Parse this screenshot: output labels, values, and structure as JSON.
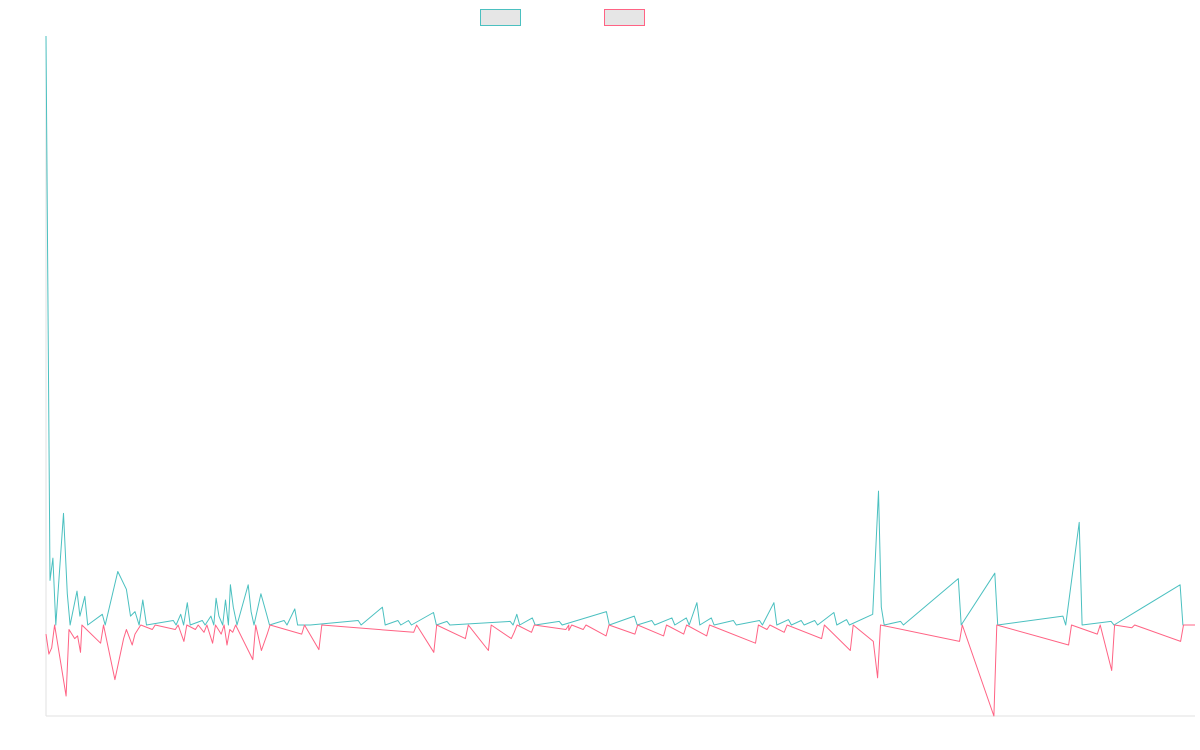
{
  "chart_data": {
    "type": "line",
    "title": "",
    "xlabel": "",
    "ylabel": "",
    "grid": false,
    "legend": "top-center",
    "xlim": [
      0,
      400
    ],
    "ylim": [
      -100,
      660
    ],
    "colors": {
      "series_a": "#4bc0c0",
      "series_b": "#ff6384",
      "legend_fill": "#e6e6e6",
      "axis": "#e2e2e2"
    },
    "series": [
      {
        "points": [
          [
            0,
            660
          ],
          [
            1.4,
            50
          ],
          [
            2.4,
            75
          ],
          [
            3.4,
            0
          ],
          [
            6.1,
            125
          ],
          [
            7.4,
            35
          ],
          [
            8.4,
            0
          ],
          [
            10.8,
            38
          ],
          [
            11.8,
            10
          ],
          [
            13.5,
            32
          ],
          [
            14.5,
            0
          ],
          [
            19.6,
            12
          ],
          [
            20.6,
            0
          ],
          [
            25,
            60
          ],
          [
            28,
            40
          ],
          [
            29.4,
            10
          ],
          [
            31,
            15
          ],
          [
            32.4,
            0
          ],
          [
            33.7,
            28
          ],
          [
            35,
            0
          ],
          [
            44.3,
            5
          ],
          [
            45.3,
            0
          ],
          [
            46.9,
            12
          ],
          [
            47.9,
            0
          ],
          [
            49.2,
            25
          ],
          [
            50.2,
            0
          ],
          [
            54.4,
            5
          ],
          [
            55.4,
            0
          ],
          [
            57.4,
            10
          ],
          [
            58.4,
            0
          ],
          [
            59.2,
            30
          ],
          [
            60.2,
            10
          ],
          [
            61.5,
            0
          ],
          [
            62.5,
            28
          ],
          [
            63.5,
            0
          ],
          [
            64.2,
            45
          ],
          [
            65.2,
            20
          ],
          [
            66.5,
            0
          ],
          [
            70.4,
            45
          ],
          [
            71.4,
            15
          ],
          [
            72.4,
            0
          ],
          [
            74.8,
            35
          ],
          [
            76.8,
            12
          ],
          [
            77.8,
            0
          ],
          [
            82.9,
            5
          ],
          [
            83.9,
            0
          ],
          [
            86.6,
            18
          ],
          [
            87.6,
            0
          ],
          [
            92,
            0
          ],
          [
            108.7,
            5
          ],
          [
            109.7,
            0
          ],
          [
            117.1,
            20
          ],
          [
            118.1,
            0
          ],
          [
            122.5,
            5
          ],
          [
            123.5,
            0
          ],
          [
            126.2,
            5
          ],
          [
            127.2,
            0
          ],
          [
            134.9,
            14
          ],
          [
            135.9,
            0
          ],
          [
            139.6,
            4
          ],
          [
            140.6,
            0
          ],
          [
            161.6,
            4
          ],
          [
            162.6,
            0
          ],
          [
            163.9,
            12
          ],
          [
            164.9,
            0
          ],
          [
            169.3,
            8
          ],
          [
            170.3,
            0
          ],
          [
            178.7,
            4
          ],
          [
            179.7,
            0
          ],
          [
            195.1,
            15
          ],
          [
            196.1,
            0
          ],
          [
            204.8,
            10
          ],
          [
            205.8,
            0
          ],
          [
            210.9,
            5
          ],
          [
            211.9,
            0
          ],
          [
            217.9,
            8
          ],
          [
            218.9,
            0
          ],
          [
            222.9,
            8
          ],
          [
            223.9,
            0
          ],
          [
            226.6,
            25
          ],
          [
            227.6,
            0
          ],
          [
            231.6,
            8
          ],
          [
            232.6,
            0
          ],
          [
            239.3,
            5
          ],
          [
            240.3,
            0
          ],
          [
            248.4,
            5
          ],
          [
            249.4,
            0
          ],
          [
            253.4,
            25
          ],
          [
            254.4,
            0
          ],
          [
            258.5,
            6
          ],
          [
            259.5,
            0
          ],
          [
            262.9,
            5
          ],
          [
            263.9,
            0
          ],
          [
            267.6,
            5
          ],
          [
            268.6,
            0
          ],
          [
            274.3,
            14
          ],
          [
            275.3,
            0
          ],
          [
            278.7,
            6
          ],
          [
            279.7,
            0
          ],
          [
            287.8,
            12
          ],
          [
            289.8,
            150
          ],
          [
            290.8,
            20
          ],
          [
            291.8,
            0
          ],
          [
            297.5,
            4
          ],
          [
            298.5,
            0
          ],
          [
            317.6,
            52
          ],
          [
            318.6,
            0
          ],
          [
            330.3,
            58
          ],
          [
            331.3,
            0
          ],
          [
            354,
            10
          ],
          [
            355,
            0
          ],
          [
            359.7,
            115
          ],
          [
            360.7,
            0
          ],
          [
            370.8,
            4
          ],
          [
            371.8,
            0
          ],
          [
            394.8,
            45
          ],
          [
            395.8,
            0
          ],
          [
            400,
            0
          ]
        ]
      },
      {
        "points": [
          [
            0,
            -10
          ],
          [
            1,
            -32
          ],
          [
            2,
            -25
          ],
          [
            3,
            0
          ],
          [
            7,
            -78
          ],
          [
            8,
            -5
          ],
          [
            9,
            -10
          ],
          [
            10,
            -15
          ],
          [
            11,
            -12
          ],
          [
            12,
            -30
          ],
          [
            12.5,
            0
          ],
          [
            19,
            -20
          ],
          [
            20,
            0
          ],
          [
            24,
            -60
          ],
          [
            27,
            -15
          ],
          [
            28,
            -5
          ],
          [
            30,
            -22
          ],
          [
            31,
            -10
          ],
          [
            32,
            -5
          ],
          [
            33,
            0
          ],
          [
            37,
            -5
          ],
          [
            38,
            0
          ],
          [
            45,
            -5
          ],
          [
            46,
            0
          ],
          [
            48,
            -18
          ],
          [
            49,
            0
          ],
          [
            52,
            -5
          ],
          [
            53,
            0
          ],
          [
            55,
            -8
          ],
          [
            56,
            0
          ],
          [
            58,
            -20
          ],
          [
            59,
            0
          ],
          [
            61,
            -10
          ],
          [
            62,
            0
          ],
          [
            63,
            -22
          ],
          [
            64,
            -5
          ],
          [
            65,
            -8
          ],
          [
            66,
            0
          ],
          [
            72,
            -38
          ],
          [
            73,
            0
          ],
          [
            75,
            -28
          ],
          [
            77,
            -10
          ],
          [
            78,
            0
          ],
          [
            89,
            -10
          ],
          [
            90,
            0
          ],
          [
            95,
            -27
          ],
          [
            96,
            0
          ],
          [
            128,
            -8
          ],
          [
            129,
            0
          ],
          [
            135,
            -30
          ],
          [
            136,
            0
          ],
          [
            146,
            -15
          ],
          [
            147,
            0
          ],
          [
            154,
            -28
          ],
          [
            155,
            0
          ],
          [
            162,
            -15
          ],
          [
            163,
            -8
          ],
          [
            164,
            0
          ],
          [
            169,
            -8
          ],
          [
            170,
            0
          ],
          [
            181,
            -5
          ],
          [
            182,
            0
          ],
          [
            182,
            -6
          ],
          [
            183,
            0
          ],
          [
            187,
            -5
          ],
          [
            188,
            0
          ],
          [
            195,
            -12
          ],
          [
            196,
            0
          ],
          [
            205,
            -10
          ],
          [
            206,
            0
          ],
          [
            215,
            -12
          ],
          [
            216,
            0
          ],
          [
            222,
            -10
          ],
          [
            223,
            0
          ],
          [
            230,
            -12
          ],
          [
            231,
            0
          ],
          [
            247,
            -20
          ],
          [
            248,
            0
          ],
          [
            251,
            -5
          ],
          [
            252,
            0
          ],
          [
            257,
            -8
          ],
          [
            258,
            0
          ],
          [
            270,
            -15
          ],
          [
            271,
            0
          ],
          [
            280,
            -28
          ],
          [
            281,
            0
          ],
          [
            288,
            -18
          ],
          [
            289.5,
            -58
          ],
          [
            290.5,
            0
          ],
          [
            318,
            -18
          ],
          [
            319,
            0
          ],
          [
            330,
            -100
          ],
          [
            331,
            0
          ],
          [
            356,
            -22
          ],
          [
            357,
            0
          ],
          [
            366,
            -10
          ],
          [
            367,
            0
          ],
          [
            371,
            -50
          ],
          [
            372,
            0
          ],
          [
            378,
            -3
          ],
          [
            379,
            0
          ],
          [
            395,
            -18
          ],
          [
            396,
            0
          ],
          [
            400,
            0
          ]
        ]
      }
    ]
  }
}
